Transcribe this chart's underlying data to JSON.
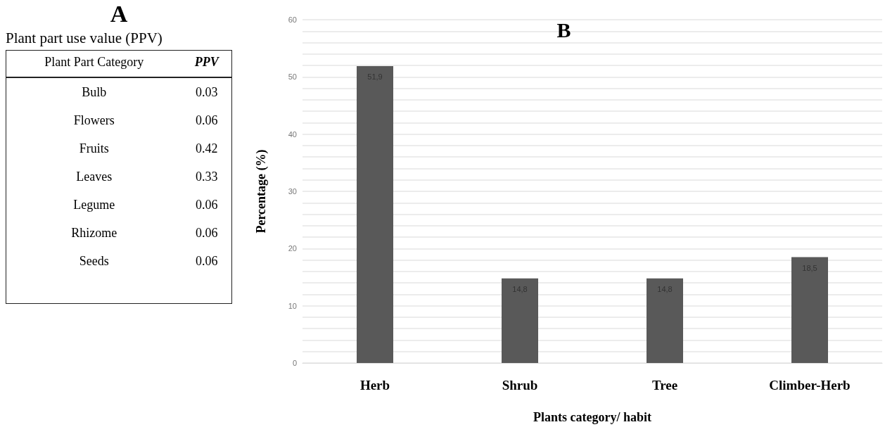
{
  "chart_data": [
    {
      "type": "other",
      "title": "A",
      "subtitle": "Plant part use value (PPV)",
      "xlabel": "Plant Part Category",
      "ylabel": "PPV",
      "categories": [
        "Bulb",
        "Flowers",
        "Fruits",
        "Leaves",
        "Legume",
        "Rhizome",
        "Seeds"
      ],
      "values": [
        0.03,
        0.06,
        0.42,
        0.33,
        0.06,
        0.06,
        0.06
      ],
      "data_labels": true
    },
    {
      "type": "bar",
      "title": "B",
      "xlabel": "Plants category/ habit",
      "ylabel": "Percentage (%)",
      "categories": [
        "Herb",
        "Shrub",
        "Tree",
        "Climber-Herb"
      ],
      "values": [
        51.9,
        14.8,
        14.8,
        18.5
      ],
      "value_labels": [
        "51,9",
        "14,8",
        "14,8",
        "18,5"
      ],
      "color": "#595959",
      "ylim": [
        0,
        60
      ],
      "grid": true,
      "yticks": [
        0,
        {
          "value": 2,
          "label": null
        },
        {
          "value": 4,
          "label": null
        },
        {
          "value": 6,
          "label": null
        },
        {
          "value": 8,
          "label": null
        },
        10,
        {
          "value": 12,
          "label": null
        },
        {
          "value": 14,
          "label": null
        },
        {
          "value": 16,
          "label": null
        },
        {
          "value": 18,
          "label": null
        },
        20,
        {
          "value": 22,
          "label": null
        },
        {
          "value": 24,
          "label": null
        },
        {
          "value": 26,
          "label": null
        },
        {
          "value": 28,
          "label": null
        },
        30,
        {
          "value": 32,
          "label": null
        },
        {
          "value": 34,
          "label": null
        },
        {
          "value": 36,
          "label": null
        },
        {
          "value": 38,
          "label": null
        },
        40,
        {
          "value": 42,
          "label": null
        },
        {
          "value": 44,
          "label": null
        },
        {
          "value": 46,
          "label": null
        },
        {
          "value": 48,
          "label": null
        },
        50,
        {
          "value": 52,
          "label": null
        },
        {
          "value": 54,
          "label": null
        },
        {
          "value": 56,
          "label": null
        },
        {
          "value": 58,
          "label": null
        },
        60
      ]
    }
  ]
}
